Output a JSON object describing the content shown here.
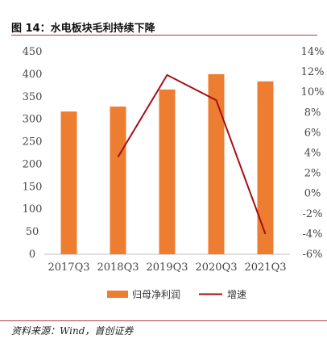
{
  "figure": {
    "title": "图 14：水电板块毛利持续下降",
    "source": "资料来源：Wind，首创证券"
  },
  "colors": {
    "bar": "#ED7D31",
    "line": "#A50F15",
    "axis": "#BFBFBF",
    "rule": "#B03A3A"
  },
  "chart_data": {
    "type": "bar",
    "categories": [
      "2017Q3",
      "2018Q3",
      "2019Q3",
      "2020Q3",
      "2021Q3"
    ],
    "series": [
      {
        "name": "归母净利润",
        "type": "bar",
        "axis": "left",
        "values": [
          317,
          328,
          366,
          400,
          384
        ]
      },
      {
        "name": "增速",
        "type": "line",
        "axis": "right",
        "unit": "%",
        "values": [
          null,
          3.6,
          11.7,
          9.2,
          -4.0
        ]
      }
    ],
    "y_left": {
      "lim": [
        0,
        450
      ],
      "ticks": [
        "0",
        "50",
        "100",
        "150",
        "200",
        "250",
        "300",
        "350",
        "400",
        "450"
      ]
    },
    "y_right": {
      "lim": [
        -6,
        14
      ],
      "ticks": [
        "-6%",
        "-4%",
        "-2%",
        "0%",
        "2%",
        "4%",
        "6%",
        "8%",
        "10%",
        "12%",
        "14%"
      ]
    },
    "grid": false,
    "legend": "bottom-center"
  }
}
